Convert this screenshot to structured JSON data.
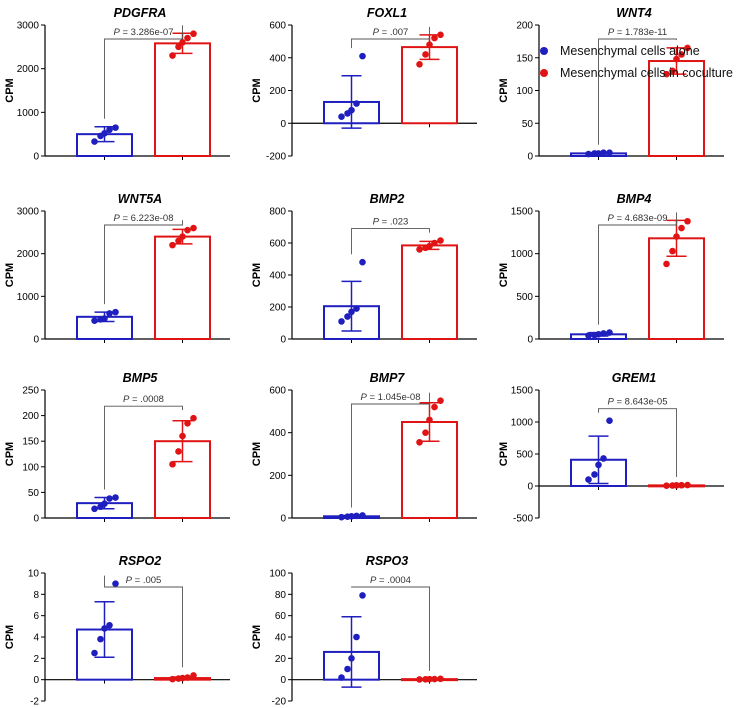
{
  "colors": {
    "alone": "#1f1fbf",
    "coculture": "#e01414",
    "axis": "#000000",
    "bracket": "#555555"
  },
  "legend": {
    "alone_label": "Mesenchymal cells alone",
    "coculture_label": "Mesenchymal cells in coculture"
  },
  "chart_data": [
    {
      "type": "bar",
      "title": "PDGFRA",
      "ylabel": "CPM",
      "ylim": [
        0,
        3000
      ],
      "yticks": [
        0,
        1000,
        2000,
        3000
      ],
      "pvalue": "P = 3.286e-07",
      "series": [
        {
          "name": "Mesenchymal cells alone",
          "mean": 500,
          "sd": 170,
          "points": [
            330,
            460,
            520,
            600,
            650
          ]
        },
        {
          "name": "Mesenchymal cells in coculture",
          "mean": 2580,
          "sd": 230,
          "points": [
            2300,
            2500,
            2600,
            2700,
            2800
          ]
        }
      ]
    },
    {
      "type": "bar",
      "title": "FOXL1",
      "ylabel": "CPM",
      "ylim": [
        -200,
        600
      ],
      "yticks": [
        -200,
        0,
        200,
        400,
        600
      ],
      "pvalue": "P = .007",
      "series": [
        {
          "name": "Mesenchymal cells alone",
          "mean": 130,
          "sd": 160,
          "points": [
            40,
            60,
            80,
            120,
            410
          ]
        },
        {
          "name": "Mesenchymal cells in coculture",
          "mean": 465,
          "sd": 75,
          "points": [
            360,
            420,
            480,
            520,
            540
          ]
        }
      ]
    },
    {
      "type": "bar",
      "title": "WNT4",
      "ylabel": "CPM",
      "ylim": [
        0,
        200
      ],
      "yticks": [
        0,
        50,
        100,
        150,
        200
      ],
      "pvalue": "P = 1.783e-11",
      "series": [
        {
          "name": "Mesenchymal cells alone",
          "mean": 4,
          "sd": 1,
          "points": [
            3,
            4,
            4,
            5,
            5
          ]
        },
        {
          "name": "Mesenchymal cells in coculture",
          "mean": 145,
          "sd": 20,
          "points": [
            125,
            130,
            148,
            155,
            165
          ]
        }
      ]
    },
    {
      "type": "bar",
      "title": "WNT5A",
      "ylabel": "CPM",
      "ylim": [
        0,
        3000
      ],
      "yticks": [
        0,
        1000,
        2000,
        3000
      ],
      "pvalue": "P = 6.223e-08",
      "series": [
        {
          "name": "Mesenchymal cells alone",
          "mean": 520,
          "sd": 110,
          "points": [
            430,
            460,
            480,
            600,
            630
          ]
        },
        {
          "name": "Mesenchymal cells in coculture",
          "mean": 2400,
          "sd": 170,
          "points": [
            2200,
            2300,
            2400,
            2550,
            2600
          ]
        }
      ]
    },
    {
      "type": "bar",
      "title": "BMP2",
      "ylabel": "CPM",
      "ylim": [
        0,
        800
      ],
      "yticks": [
        0,
        200,
        400,
        600,
        800
      ],
      "pvalue": "P = .023",
      "series": [
        {
          "name": "Mesenchymal cells alone",
          "mean": 205,
          "sd": 155,
          "points": [
            110,
            140,
            170,
            190,
            480
          ]
        },
        {
          "name": "Mesenchymal cells in coculture",
          "mean": 585,
          "sd": 25,
          "points": [
            560,
            570,
            580,
            600,
            615
          ]
        }
      ]
    },
    {
      "type": "bar",
      "title": "BMP4",
      "ylabel": "CPM",
      "ylim": [
        0,
        1500
      ],
      "yticks": [
        0,
        500,
        1000,
        1500
      ],
      "pvalue": "P = 4.683e-09",
      "series": [
        {
          "name": "Mesenchymal cells alone",
          "mean": 55,
          "sd": 20,
          "points": [
            40,
            45,
            55,
            65,
            75
          ]
        },
        {
          "name": "Mesenchymal cells in coculture",
          "mean": 1180,
          "sd": 210,
          "points": [
            880,
            1030,
            1200,
            1300,
            1380
          ]
        }
      ]
    },
    {
      "type": "bar",
      "title": "BMP5",
      "ylabel": "CPM",
      "ylim": [
        0,
        250
      ],
      "yticks": [
        0,
        50,
        100,
        150,
        200,
        250
      ],
      "pvalue": "P = .0008",
      "series": [
        {
          "name": "Mesenchymal cells alone",
          "mean": 29,
          "sd": 11,
          "points": [
            18,
            22,
            28,
            38,
            40
          ]
        },
        {
          "name": "Mesenchymal cells in coculture",
          "mean": 150,
          "sd": 40,
          "points": [
            105,
            130,
            160,
            185,
            195
          ]
        }
      ]
    },
    {
      "type": "bar",
      "title": "BMP7",
      "ylabel": "CPM",
      "ylim": [
        0,
        600
      ],
      "yticks": [
        0,
        200,
        400,
        600
      ],
      "pvalue": "P = 1.045e-08",
      "series": [
        {
          "name": "Mesenchymal cells alone",
          "mean": 8,
          "sd": 4,
          "points": [
            4,
            6,
            8,
            10,
            12
          ]
        },
        {
          "name": "Mesenchymal cells in coculture",
          "mean": 450,
          "sd": 90,
          "points": [
            355,
            400,
            460,
            520,
            550
          ]
        }
      ]
    },
    {
      "type": "bar",
      "title": "GREM1",
      "ylabel": "CPM",
      "ylim": [
        -500,
        1500
      ],
      "yticks": [
        -500,
        0,
        500,
        1000,
        1500
      ],
      "pvalue": "P = 8.643e-05",
      "series": [
        {
          "name": "Mesenchymal cells alone",
          "mean": 410,
          "sd": 370,
          "points": [
            100,
            180,
            330,
            430,
            1020
          ]
        },
        {
          "name": "Mesenchymal cells in coculture",
          "mean": 10,
          "sd": 5,
          "points": [
            5,
            8,
            10,
            12,
            15
          ]
        }
      ]
    },
    {
      "type": "bar",
      "title": "RSPO2",
      "ylabel": "CPM",
      "ylim": [
        -2,
        10
      ],
      "yticks": [
        -2,
        0,
        2,
        4,
        6,
        8,
        10
      ],
      "pvalue": "P = .005",
      "series": [
        {
          "name": "Mesenchymal cells alone",
          "mean": 4.7,
          "sd": 2.6,
          "points": [
            2.5,
            3.8,
            4.8,
            5.1,
            9.0
          ]
        },
        {
          "name": "Mesenchymal cells in coculture",
          "mean": 0.15,
          "sd": 0.1,
          "points": [
            0.05,
            0.1,
            0.15,
            0.2,
            0.4
          ]
        }
      ]
    },
    {
      "type": "bar",
      "title": "RSPO3",
      "ylabel": "CPM",
      "ylim": [
        -20,
        100
      ],
      "yticks": [
        -20,
        0,
        20,
        40,
        60,
        80,
        100
      ],
      "pvalue": "P = .0004",
      "series": [
        {
          "name": "Mesenchymal cells alone",
          "mean": 26,
          "sd": 33,
          "points": [
            2,
            10,
            20,
            40,
            79
          ]
        },
        {
          "name": "Mesenchymal cells in coculture",
          "mean": 0.5,
          "sd": 0.3,
          "points": [
            0.2,
            0.3,
            0.5,
            0.6,
            0.8
          ]
        }
      ]
    }
  ]
}
